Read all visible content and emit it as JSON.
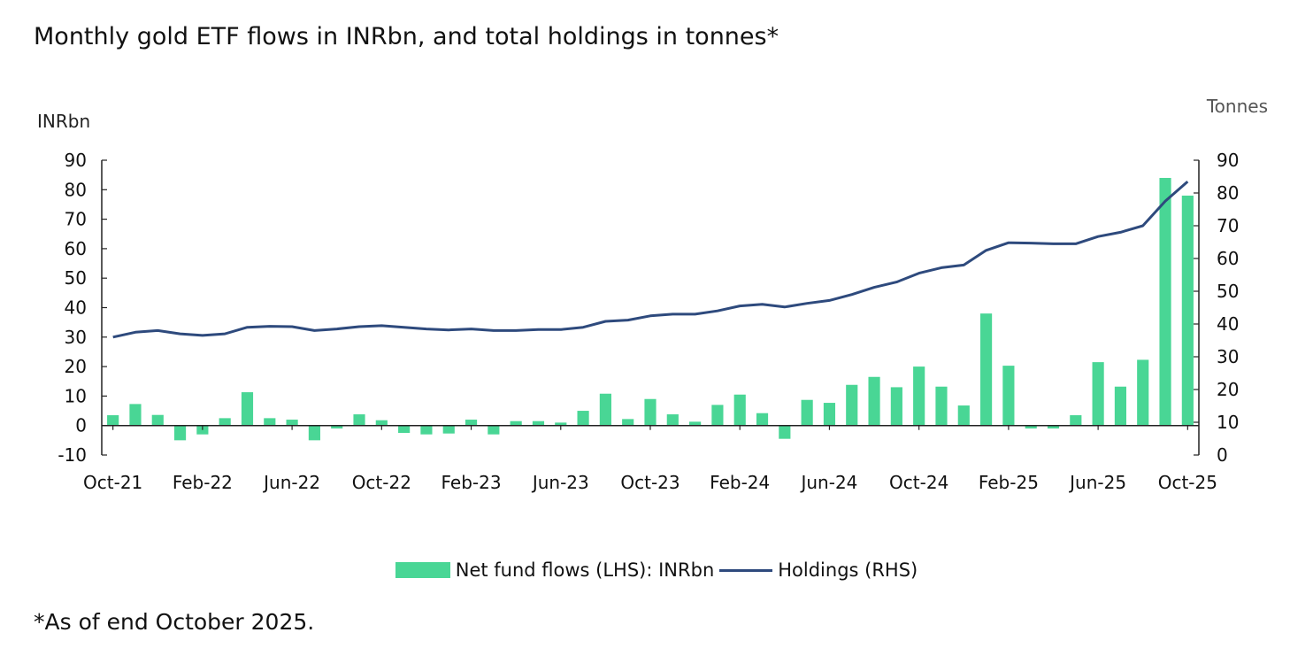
{
  "title": "Monthly gold ETF flows in INRbn, and total holdings in tonnes*",
  "footnote": "*As of end October 2025.",
  "colors": {
    "bars": "#49d695",
    "line": "#2e4a7d",
    "axis": "#222222"
  },
  "chart_data": {
    "type": "bar+line",
    "left_axis": {
      "label": "INRbn",
      "ylim": [
        -10,
        90
      ],
      "ticks": [
        "-10",
        "0",
        "10",
        "20",
        "30",
        "40",
        "50",
        "60",
        "70",
        "80",
        "90"
      ]
    },
    "right_axis": {
      "label": "Tonnes",
      "ylim": [
        0,
        90
      ],
      "ticks": [
        "0",
        "10",
        "20",
        "30",
        "40",
        "50",
        "60",
        "70",
        "80",
        "90"
      ]
    },
    "x_tick_labels": [
      "Oct-21",
      "Feb-22",
      "Jun-22",
      "Oct-22",
      "Feb-23",
      "Jun-23",
      "Oct-23",
      "Feb-24",
      "Jun-24",
      "Oct-24",
      "Feb-25",
      "Jun-25",
      "Oct-25"
    ],
    "categories": [
      "Oct-21",
      "Nov-21",
      "Dec-21",
      "Jan-22",
      "Feb-22",
      "Mar-22",
      "Apr-22",
      "May-22",
      "Jun-22",
      "Jul-22",
      "Aug-22",
      "Sep-22",
      "Oct-22",
      "Nov-22",
      "Dec-22",
      "Jan-23",
      "Feb-23",
      "Mar-23",
      "Apr-23",
      "May-23",
      "Jun-23",
      "Jul-23",
      "Aug-23",
      "Sep-23",
      "Oct-23",
      "Nov-23",
      "Dec-23",
      "Jan-24",
      "Feb-24",
      "Mar-24",
      "Apr-24",
      "May-24",
      "Jun-24",
      "Jul-24",
      "Aug-24",
      "Sep-24",
      "Oct-24",
      "Nov-24",
      "Dec-24",
      "Jan-25",
      "Feb-25",
      "Mar-25",
      "Apr-25",
      "May-25",
      "Jun-25",
      "Jul-25",
      "Aug-25",
      "Sep-25",
      "Oct-25"
    ],
    "series": [
      {
        "name": "Net fund flows (LHS): INRbn",
        "axis": "left",
        "type": "bar",
        "values": [
          3.5,
          7.3,
          3.6,
          -5,
          -3,
          2.5,
          11.3,
          2.5,
          2,
          -5,
          -1,
          3.8,
          1.8,
          -2.5,
          -3,
          -2.7,
          2,
          -3,
          1.5,
          1.5,
          1,
          5,
          10.8,
          2.2,
          9,
          3.8,
          1.3,
          7,
          10.5,
          4.2,
          -4.5,
          8.7,
          7.7,
          13.8,
          16.5,
          13,
          20,
          13.2,
          6.8,
          38,
          20.3,
          -1,
          -1,
          3.5,
          21.5,
          13.2,
          22.3,
          84,
          78
        ]
      },
      {
        "name": "Holdings (RHS)",
        "axis": "right",
        "type": "line",
        "values": [
          36,
          37.5,
          38,
          37,
          36.5,
          37,
          39,
          39.3,
          39.2,
          38,
          38.5,
          39.2,
          39.5,
          39,
          38.5,
          38.2,
          38.5,
          38,
          38,
          38.3,
          38.3,
          39,
          40.8,
          41.2,
          42.5,
          43,
          43,
          44,
          45.5,
          46,
          45.2,
          46.3,
          47.2,
          49,
          51.2,
          52.8,
          55.5,
          57.2,
          58,
          62.5,
          64.8,
          64.7,
          64.5,
          64.5,
          66.7,
          68,
          70,
          77.5,
          83.5
        ]
      }
    ],
    "grid": false,
    "legend_position": "bottom"
  }
}
